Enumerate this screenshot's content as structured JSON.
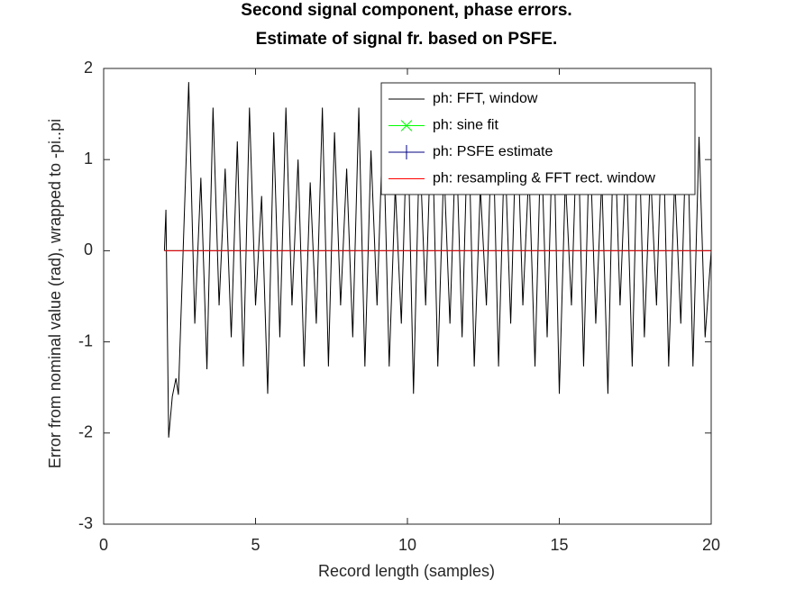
{
  "chart_data": {
    "type": "line",
    "title": "Second signal component, phase errors.",
    "subtitle": "Estimate of signal fr. based on PSFE.",
    "x_label": "Record length (samples)",
    "y_label": "Error from nominal value (rad), wrapped to -pi..pi",
    "xlim": [
      0,
      20
    ],
    "xticks": [
      0,
      5,
      10,
      15,
      20
    ],
    "ylim": [
      -3,
      2
    ],
    "yticks": [
      -3,
      -2,
      -1,
      0,
      1,
      2
    ],
    "legend": "top-right",
    "series": [
      {
        "name": "ph: FFT, window",
        "color": "#000000",
        "marker": "none",
        "x": [
          2,
          2.05,
          2.14,
          2.26,
          2.38,
          2.46,
          2.8,
          3,
          3.2,
          3.4,
          3.6,
          3.8,
          4,
          4.2,
          4.4,
          4.6,
          4.8,
          5,
          5.2,
          5.4,
          5.6,
          5.8,
          6,
          6.2,
          6.4,
          6.6,
          6.8,
          7,
          7.2,
          7.4,
          7.6,
          7.8,
          8,
          8.2,
          8.4,
          8.6,
          8.8,
          9,
          9.2,
          9.4,
          9.6,
          9.8,
          10,
          10.2,
          10.4,
          10.6,
          10.8,
          11,
          11.2,
          11.4,
          11.6,
          11.8,
          12,
          12.2,
          12.4,
          12.6,
          12.8,
          13,
          13.2,
          13.4,
          13.6,
          13.8,
          14,
          14.2,
          14.4,
          14.6,
          14.8,
          15,
          15.2,
          15.4,
          15.6,
          15.8,
          16,
          16.2,
          16.4,
          16.6,
          16.8,
          17,
          17.2,
          17.4,
          17.6,
          17.8,
          18,
          18.2,
          18.4,
          18.6,
          18.8,
          19,
          19.2,
          19.4,
          19.6,
          19.8,
          20
        ],
        "values": [
          0,
          0.45,
          -2.05,
          -1.6,
          -1.4,
          -1.58,
          1.85,
          -0.8,
          0.8,
          -1.3,
          1.57,
          -0.6,
          0.9,
          -0.95,
          1.2,
          -1.27,
          1.57,
          -0.6,
          0.6,
          -1.57,
          1.3,
          -0.95,
          1.57,
          -0.6,
          1.0,
          -1.27,
          0.75,
          -0.8,
          1.57,
          -1.27,
          1.3,
          -0.6,
          0.9,
          -0.95,
          1.57,
          -1.27,
          1.1,
          -0.6,
          1.45,
          -1.27,
          0.7,
          -0.8,
          1.57,
          -1.57,
          1.2,
          -0.6,
          1.57,
          -1.27,
          0.95,
          -0.8,
          1.3,
          -0.95,
          1.57,
          -1.27,
          0.7,
          -0.6,
          1.57,
          -1.27,
          1.2,
          -0.8,
          1.57,
          -0.6,
          0.9,
          -1.27,
          1.3,
          -0.95,
          1.57,
          -1.57,
          0.8,
          -0.6,
          1.57,
          -1.27,
          1.3,
          -0.8,
          0.8,
          -1.57,
          1.57,
          -0.6,
          1.1,
          -1.27,
          1.57,
          -0.95,
          0.9,
          -0.6,
          1.57,
          -1.27,
          0.8,
          -0.8,
          1.57,
          -1.27,
          1.25,
          -0.95,
          0
        ]
      },
      {
        "name": "ph: sine fit",
        "color": "#00ff00",
        "marker": "x",
        "x": [
          2,
          20
        ],
        "values": [
          0,
          0
        ]
      },
      {
        "name": "ph: PSFE estimate",
        "color": "#000080",
        "marker": "+",
        "x": [
          2,
          20
        ],
        "values": [
          0,
          0
        ]
      },
      {
        "name": "ph: resampling & FFT rect. window",
        "color": "#ff0000",
        "marker": "none",
        "x": [
          2,
          20
        ],
        "values": [
          0,
          0
        ]
      }
    ]
  }
}
